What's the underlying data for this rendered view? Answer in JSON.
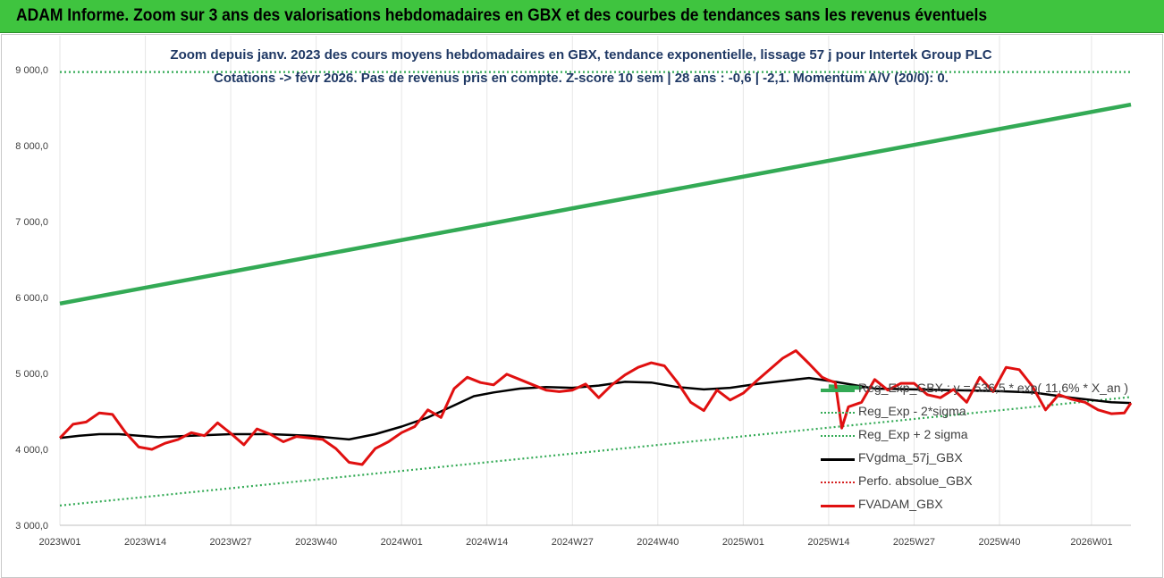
{
  "banner_title": "ADAM Informe. Zoom sur 3 ans des valorisations hebdomadaires en GBX et des courbes de tendances sans les revenus éventuels",
  "chart_data": {
    "type": "line",
    "title_line1": "Zoom depuis janv. 2023 des cours moyens hebdomadaires en GBX, tendance exponentielle, lissage 57 j pour Intertek Group PLC",
    "title_line2": "Cotations -> févr 2026.  Pas de revenus pris en compte. Z-score 10 sem | 28 ans : -0,6 | -2,1. Momentum A/V (20/0): 0.",
    "xlabel": "",
    "ylabel": "",
    "ylim": [
      3000,
      9000
    ],
    "yticks": [
      "3 000,0",
      "4 000,0",
      "5 000,0",
      "6 000,0",
      "7 000,0",
      "8 000,0",
      "9 000,0"
    ],
    "ytick_values": [
      3000,
      4000,
      5000,
      6000,
      7000,
      8000,
      9000
    ],
    "xlim": [
      0,
      163
    ],
    "xticks": [
      "2023W01",
      "2023W14",
      "2023W27",
      "2023W40",
      "2024W01",
      "2024W14",
      "2024W27",
      "2024W40",
      "2025W01",
      "2025W14",
      "2025W27",
      "2025W40",
      "2026W01"
    ],
    "xtick_positions": [
      0,
      13,
      26,
      39,
      52,
      65,
      78,
      91,
      104,
      117,
      130,
      143,
      157
    ],
    "grid": "vertical",
    "legend_position": "right",
    "series": [
      {
        "name": "Reg_Exp_GBX : y = 536,5 * exp( 11,6% *  X_an )",
        "color": "#33aa55",
        "style": "solid",
        "x": [
          117,
          122
        ],
        "values": [
          4830,
          4810
        ]
      },
      {
        "name": "Reg_Exp - 2*sigma",
        "color": "#33aa55",
        "style": "dotted",
        "x": [
          0,
          163
        ],
        "values": [
          3260,
          4690
        ]
      },
      {
        "name": "Reg_Exp + 2 sigma",
        "color": "#33aa55",
        "style": "dotted",
        "x": [
          0,
          163
        ],
        "values": [
          8970,
          8970
        ]
      },
      {
        "name": "FVgdma_57j_GBX",
        "color": "#000000",
        "style": "solid",
        "x": [
          0,
          3,
          6,
          9,
          12,
          15,
          20,
          26,
          32,
          38,
          44,
          48,
          52,
          56,
          60,
          63,
          66,
          70,
          74,
          78,
          82,
          86,
          90,
          94,
          98,
          102,
          106,
          110,
          114,
          118,
          124,
          130,
          136,
          142,
          148,
          154,
          160,
          163
        ],
        "values": [
          4150,
          4180,
          4200,
          4200,
          4180,
          4160,
          4180,
          4200,
          4200,
          4180,
          4130,
          4200,
          4300,
          4420,
          4580,
          4700,
          4750,
          4800,
          4820,
          4810,
          4840,
          4890,
          4880,
          4820,
          4790,
          4810,
          4860,
          4900,
          4940,
          4890,
          4800,
          4790,
          4780,
          4770,
          4750,
          4680,
          4620,
          4610
        ]
      },
      {
        "name": "Perfo. absolue_GBX",
        "color": "#d62020",
        "style": "dotted",
        "x": [],
        "values": []
      },
      {
        "name": "FVADAM_GBX",
        "color": "#e01010",
        "style": "solid",
        "x": [
          0,
          2,
          4,
          6,
          8,
          10,
          12,
          14,
          16,
          18,
          20,
          22,
          24,
          26,
          28,
          30,
          32,
          34,
          36,
          38,
          40,
          42,
          44,
          46,
          48,
          50,
          52,
          54,
          56,
          58,
          60,
          62,
          64,
          66,
          68,
          70,
          72,
          74,
          76,
          78,
          80,
          82,
          84,
          86,
          88,
          90,
          92,
          94,
          96,
          98,
          100,
          102,
          104,
          106,
          108,
          110,
          112,
          114,
          116,
          117,
          118,
          119,
          120,
          122,
          124,
          126,
          128,
          130,
          132,
          134,
          136,
          138,
          140,
          142,
          144,
          146,
          148,
          150,
          152,
          154,
          156,
          158,
          160,
          162,
          163
        ],
        "values": [
          4150,
          4330,
          4360,
          4480,
          4460,
          4220,
          4030,
          4000,
          4080,
          4130,
          4220,
          4180,
          4350,
          4210,
          4060,
          4270,
          4200,
          4100,
          4170,
          4150,
          4130,
          4010,
          3830,
          3800,
          4010,
          4100,
          4220,
          4300,
          4520,
          4420,
          4800,
          4950,
          4880,
          4850,
          4990,
          4920,
          4850,
          4780,
          4760,
          4780,
          4860,
          4680,
          4850,
          4980,
          5080,
          5140,
          5100,
          4880,
          4620,
          4510,
          4780,
          4650,
          4740,
          4900,
          5050,
          5200,
          5300,
          5130,
          4950,
          4910,
          4880,
          4280,
          4560,
          4620,
          4920,
          4780,
          4870,
          4870,
          4720,
          4680,
          4790,
          4620,
          4950,
          4760,
          5080,
          5050,
          4830,
          4520,
          4720,
          4660,
          4620,
          4520,
          4470,
          4480,
          4610
        ]
      }
    ]
  }
}
